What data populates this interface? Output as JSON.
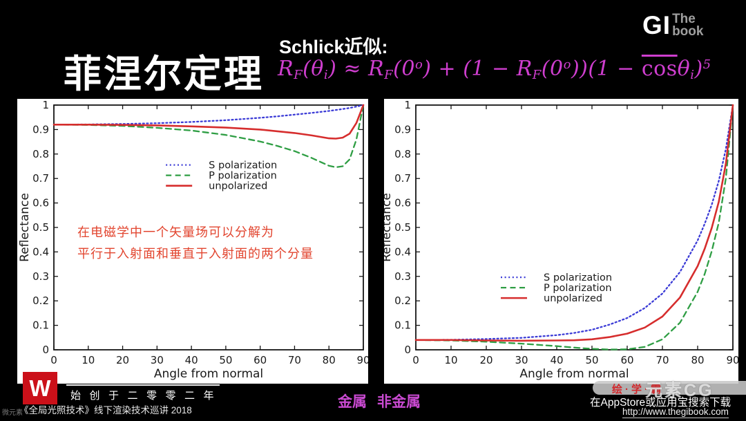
{
  "header": {
    "title": "菲涅尔定理",
    "schlick_label": "Schlick近似:",
    "formula": [
      {
        "t": "R",
        "s": "n"
      },
      {
        "t": "F",
        "s": "sub"
      },
      {
        "t": "(θ",
        "s": "n"
      },
      {
        "t": "i",
        "s": "sub"
      },
      {
        "t": ") ≈ R",
        "s": "n"
      },
      {
        "t": "F",
        "s": "sub"
      },
      {
        "t": "(0",
        "s": "n"
      },
      {
        "t": "o",
        "s": "sup"
      },
      {
        "t": ") + (1 − R",
        "s": "n"
      },
      {
        "t": "F",
        "s": "sub"
      },
      {
        "t": "(0",
        "s": "n"
      },
      {
        "t": "o",
        "s": "sup"
      },
      {
        "t": "))(1 − ",
        "s": "n"
      },
      {
        "t": "cos",
        "s": "bar"
      },
      {
        "t": "θ",
        "s": "n"
      },
      {
        "t": "i",
        "s": "sub"
      },
      {
        "t": ")",
        "s": "n"
      },
      {
        "t": "5",
        "s": "sup"
      }
    ],
    "logo_gi": "GI",
    "logo_the": "The",
    "logo_book": "book"
  },
  "annotation": {
    "line1": "在电磁学中一个矢量场可以分解为",
    "line2": "平行于入射面和垂直于入射面的两个分量"
  },
  "chart_data": [
    {
      "type": "line",
      "title": "",
      "xlabel": "Angle from normal",
      "ylabel": "Reflectance",
      "xlim": [
        0,
        90
      ],
      "ylim": [
        0,
        1
      ],
      "x_ticks": [
        0,
        10,
        20,
        30,
        40,
        50,
        60,
        70,
        80,
        90
      ],
      "y_ticks": [
        0,
        0.1,
        0.2,
        0.3,
        0.4,
        0.5,
        0.6,
        0.7,
        0.8,
        0.9,
        1
      ],
      "grid": false,
      "legend_position": "upper-center-inside",
      "x": [
        0,
        10,
        20,
        30,
        40,
        50,
        60,
        65,
        70,
        75,
        80,
        82,
        84,
        86,
        88,
        90
      ],
      "series": [
        {
          "name": "S polarization",
          "color": "#3b3bd6",
          "dash": "dotted",
          "values": [
            0.92,
            0.921,
            0.923,
            0.926,
            0.931,
            0.938,
            0.948,
            0.954,
            0.961,
            0.968,
            0.976,
            0.98,
            0.984,
            0.988,
            0.994,
            1.0
          ]
        },
        {
          "name": "P polarization",
          "color": "#2f9e44",
          "dash": "dashed",
          "values": [
            0.92,
            0.919,
            0.915,
            0.907,
            0.896,
            0.878,
            0.851,
            0.833,
            0.812,
            0.784,
            0.752,
            0.746,
            0.75,
            0.778,
            0.86,
            1.0
          ]
        },
        {
          "name": "unpolarized",
          "color": "#d62d2d",
          "dash": "solid",
          "values": [
            0.92,
            0.92,
            0.919,
            0.917,
            0.913,
            0.908,
            0.9,
            0.893,
            0.886,
            0.876,
            0.864,
            0.863,
            0.867,
            0.883,
            0.927,
            1.0
          ]
        }
      ],
      "legend": {
        "fx": 0.362,
        "fy": 0.225
      }
    },
    {
      "type": "line",
      "title": "",
      "xlabel": "Angle from normal",
      "ylabel": "Reflectance",
      "xlim": [
        0,
        90
      ],
      "ylim": [
        0,
        1
      ],
      "x_ticks": [
        0,
        10,
        20,
        30,
        40,
        50,
        60,
        70,
        80,
        90
      ],
      "y_ticks": [
        0,
        0.1,
        0.2,
        0.3,
        0.4,
        0.5,
        0.6,
        0.7,
        0.8,
        0.9,
        1
      ],
      "grid": false,
      "legend_position": "center-inside",
      "x": [
        0,
        10,
        20,
        30,
        40,
        45,
        50,
        55,
        60,
        65,
        70,
        75,
        80,
        82,
        84,
        86,
        88,
        90
      ],
      "series": [
        {
          "name": "S polarization",
          "color": "#3b3bd6",
          "dash": "dotted",
          "values": [
            0.04,
            0.041,
            0.044,
            0.049,
            0.06,
            0.069,
            0.082,
            0.103,
            0.13,
            0.171,
            0.23,
            0.318,
            0.447,
            0.515,
            0.593,
            0.69,
            0.82,
            1.0
          ]
        },
        {
          "name": "P polarization",
          "color": "#2f9e44",
          "dash": "dashed",
          "values": [
            0.04,
            0.038,
            0.033,
            0.025,
            0.015,
            0.009,
            0.004,
            0.001,
            0.002,
            0.012,
            0.043,
            0.111,
            0.237,
            0.31,
            0.403,
            0.52,
            0.7,
            1.0
          ]
        },
        {
          "name": "unpolarized",
          "color": "#d62d2d",
          "dash": "solid",
          "values": [
            0.04,
            0.04,
            0.038,
            0.037,
            0.038,
            0.039,
            0.043,
            0.052,
            0.066,
            0.091,
            0.136,
            0.214,
            0.342,
            0.413,
            0.498,
            0.605,
            0.76,
            1.0
          ]
        }
      ],
      "legend": {
        "fx": 0.268,
        "fy": 0.684
      }
    }
  ],
  "footer": {
    "logo_letter": "W",
    "established": "始创于二零零二年",
    "event": "《全局光照技术》线下渲染技术巡讲 2018",
    "metal_label": "金属",
    "nonmetal_label": "非金属",
    "watermark_small": "微元素",
    "huixueba_watermark": "绘·学·霸",
    "cg_watermark": "元素CG",
    "appstore_line": "在AppStore或应用宝搜索下载",
    "url": "http://www.thegibook.com"
  },
  "colors": {
    "formula_magenta": "#cf3ecf",
    "annotation_red": "#e2452f",
    "logo_red": "#cb1019",
    "metal_magenta": "#c94ad1",
    "s_polarization": "#3b3bd6",
    "p_polarization": "#2f9e44",
    "unpolarized": "#d62d2d"
  }
}
